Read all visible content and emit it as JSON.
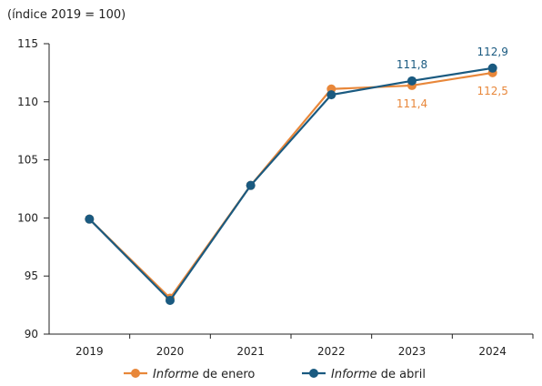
{
  "chart_data": {
    "type": "line",
    "unit_note": "(índice 2019 = 100)",
    "categories": [
      "2019",
      "2020",
      "2021",
      "2022",
      "2023",
      "2024"
    ],
    "ylim": [
      90,
      115
    ],
    "yticks": [
      "90",
      "95",
      "100",
      "105",
      "110",
      "115"
    ],
    "grid": false,
    "legend_position": "bottom",
    "series": [
      {
        "name_italic": "Informe",
        "name_rest": " de enero",
        "color": "#e8873a",
        "values": [
          99.9,
          93.1,
          102.8,
          111.1,
          111.4,
          112.5
        ]
      },
      {
        "name_italic": "Informe",
        "name_rest": " de abril",
        "color": "#1a5a80",
        "values": [
          99.9,
          92.9,
          102.8,
          110.6,
          111.8,
          112.9
        ]
      }
    ],
    "data_labels": [
      {
        "series": 1,
        "index": 4,
        "text": "111,8",
        "pos": "above"
      },
      {
        "series": 1,
        "index": 5,
        "text": "112,9",
        "pos": "above"
      },
      {
        "series": 0,
        "index": 4,
        "text": "111,4",
        "pos": "below"
      },
      {
        "series": 0,
        "index": 5,
        "text": "112,5",
        "pos": "below"
      }
    ]
  }
}
